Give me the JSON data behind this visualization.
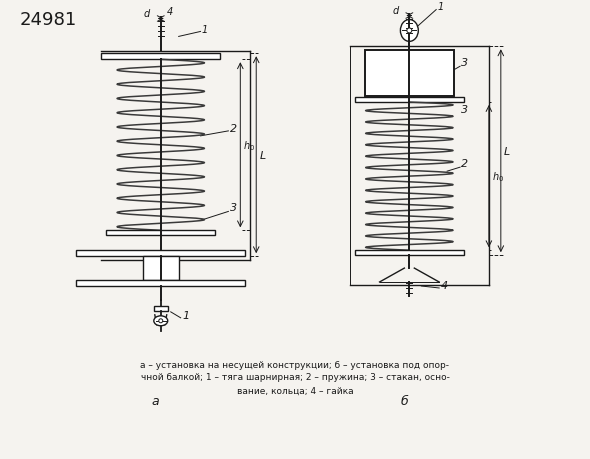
{
  "title_number": "24981",
  "caption_line1": "а – установка на несущей конструкции; б – установка под опор-",
  "caption_line2": "чной балкой; 1 – тяга шарнирная; 2 – пружина; 3 – стакан, осно-",
  "caption_line3": "вание, кольца; 4 – гайка",
  "label_a": "а",
  "label_b": "б",
  "bg_color": "#f5f3ef",
  "line_color": "#1a1a1a",
  "spring_color": "#3a3a3a"
}
